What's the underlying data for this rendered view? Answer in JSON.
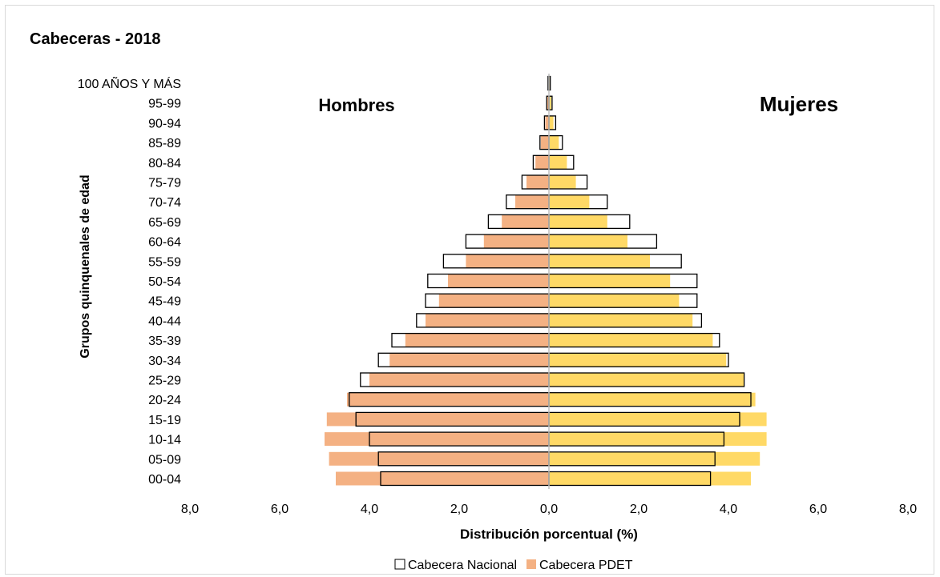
{
  "chart_data": {
    "type": "bar",
    "orientation": "horizontal",
    "title": "Cabeceras - 2018",
    "left_label": "Hombres",
    "right_label": "Mujeres",
    "xlabel": "Distribución porcentual (%)",
    "ylabel": "Grupos quinquenales de edad",
    "xlim": [
      -8,
      8
    ],
    "x_ticks": [
      "8,0",
      "6,0",
      "4,0",
      "2,0",
      "0,0",
      "2,0",
      "4,0",
      "6,0",
      "8,0"
    ],
    "categories": [
      "00-04",
      "05-09",
      "10-14",
      "15-19",
      "20-24",
      "25-29",
      "30-34",
      "35-39",
      "40-44",
      "45-49",
      "50-54",
      "55-59",
      "60-64",
      "65-69",
      "70-74",
      "75-79",
      "80-84",
      "85-89",
      "90-94",
      "95-99",
      "100 AÑOS Y MÁS"
    ],
    "legend_position": "bottom",
    "legend": [
      {
        "label": "Cabecera Nacional",
        "style": "outline"
      },
      {
        "label": "Cabecera PDET",
        "style": "filled"
      }
    ],
    "colors": {
      "hombres_pdet": "#f4b183",
      "mujeres_pdet": "#ffd966",
      "nacional_outline": "#000000",
      "axis": "#bfbfbf"
    },
    "series": [
      {
        "name": "Cabecera Nacional",
        "sex": "Hombres",
        "values": [
          3.75,
          3.8,
          4.0,
          4.3,
          4.45,
          4.2,
          3.8,
          3.5,
          2.95,
          2.75,
          2.7,
          2.35,
          1.85,
          1.35,
          0.95,
          0.6,
          0.35,
          0.2,
          0.1,
          0.05,
          0.02
        ]
      },
      {
        "name": "Cabecera PDET",
        "sex": "Hombres",
        "values": [
          4.75,
          4.9,
          5.0,
          4.95,
          4.5,
          4.0,
          3.55,
          3.2,
          2.75,
          2.45,
          2.25,
          1.85,
          1.45,
          1.05,
          0.75,
          0.5,
          0.3,
          0.18,
          0.08,
          0.04,
          0.02
        ]
      },
      {
        "name": "Cabecera Nacional",
        "sex": "Mujeres",
        "values": [
          3.6,
          3.7,
          3.9,
          4.25,
          4.5,
          4.35,
          4.0,
          3.8,
          3.4,
          3.3,
          3.3,
          2.95,
          2.4,
          1.8,
          1.3,
          0.85,
          0.55,
          0.3,
          0.15,
          0.07,
          0.03
        ]
      },
      {
        "name": "Cabecera PDET",
        "sex": "Mujeres",
        "values": [
          4.5,
          4.7,
          4.85,
          4.85,
          4.6,
          4.35,
          3.95,
          3.65,
          3.2,
          2.9,
          2.7,
          2.25,
          1.75,
          1.3,
          0.9,
          0.6,
          0.4,
          0.22,
          0.1,
          0.05,
          0.02
        ]
      }
    ]
  }
}
